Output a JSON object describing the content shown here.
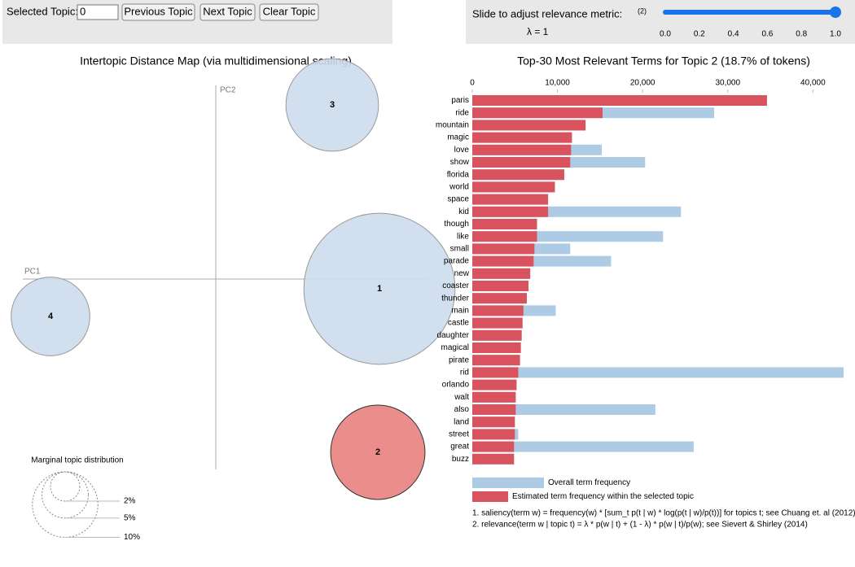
{
  "controls": {
    "selected_topic_label": "Selected Topic:",
    "selected_topic_value": "0",
    "buttons": [
      "Previous Topic",
      "Next Topic",
      "Clear Topic"
    ]
  },
  "slider": {
    "label": "Slide to adjust relevance metric:",
    "label_note": "(2)",
    "lambda_label": "λ = 1",
    "value": 1,
    "ticks": [
      {
        "value": 0,
        "label": "0.0"
      },
      {
        "value": 0.2,
        "label": "0.2"
      },
      {
        "value": 0.4,
        "label": "0.4"
      },
      {
        "value": 0.6,
        "label": "0.6"
      },
      {
        "value": 0.8,
        "label": "0.8"
      },
      {
        "value": 1,
        "label": "1.0"
      }
    ]
  },
  "topic_map": {
    "title": "Intertopic Distance Map (via multidimensional scaling)",
    "x_axis_label": "PC1",
    "y_axis_label": "PC2",
    "topics": [
      {
        "label": "1",
        "size": 48,
        "color": "#ccdcec"
      },
      {
        "label": "2",
        "size": 18.7,
        "color": "#e8817e"
      },
      {
        "label": "3",
        "size": 18,
        "color": "#ccdcec"
      },
      {
        "label": "4",
        "size": 13,
        "color": "#ccdcec"
      }
    ],
    "legend_title": "Marginal topic distribution",
    "legend_sizes": [
      {
        "value": 2,
        "label": "2%"
      },
      {
        "value": 5,
        "label": "5%"
      },
      {
        "value": 10,
        "label": "10%"
      }
    ]
  },
  "chart_data": {
    "type": "bar",
    "orientation": "horizontal",
    "title": "Top-30 Most Relevant Terms for Topic 2 (18.7% of tokens)",
    "categories": [
      "paris",
      "ride",
      "mountain",
      "magic",
      "love",
      "show",
      "florida",
      "world",
      "space",
      "kid",
      "though",
      "like",
      "small",
      "parade",
      "new",
      "coaster",
      "thunder",
      "main",
      "castle",
      "daughter",
      "magical",
      "pirate",
      "rid",
      "orlando",
      "walt",
      "also",
      "land",
      "street",
      "great",
      "buzz"
    ],
    "series": [
      {
        "name": "Overall term frequency",
        "color": "#aecbe5",
        "values": [
          34600,
          28400,
          13300,
          11700,
          15200,
          20300,
          10800,
          9700,
          8900,
          24500,
          7600,
          22400,
          11500,
          16300,
          6800,
          6600,
          6400,
          9800,
          5900,
          5800,
          5700,
          5600,
          43600,
          5200,
          5100,
          21500,
          5000,
          5400,
          26000,
          4900
        ]
      },
      {
        "name": "Estimated term frequency within the selected topic",
        "color": "#d9535f",
        "values": [
          34600,
          15300,
          13300,
          11700,
          11600,
          11500,
          10800,
          9700,
          8900,
          8900,
          7600,
          7600,
          7300,
          7200,
          6800,
          6600,
          6400,
          6000,
          5900,
          5800,
          5700,
          5600,
          5400,
          5200,
          5100,
          5100,
          5000,
          5000,
          4900,
          4900
        ]
      }
    ],
    "xlim": [
      0,
      43600
    ],
    "xticks": [
      0,
      {
        "value": 10000,
        "label": "10,000"
      },
      {
        "value": 20000,
        "label": "20,000"
      },
      {
        "value": 30000,
        "label": "30,000"
      },
      {
        "value": 40000,
        "label": "40,000"
      }
    ]
  },
  "footnotes": [
    "1. saliency(term w) = frequency(w) * [sum_t p(t | w) * log(p(t | w)/p(t))] for topics t; see Chuang et. al (2012)",
    "2. relevance(term w | topic t) = λ * p(w | t) + (1 - λ) * p(w | t)/p(w); see Sievert & Shirley (2014)"
  ]
}
